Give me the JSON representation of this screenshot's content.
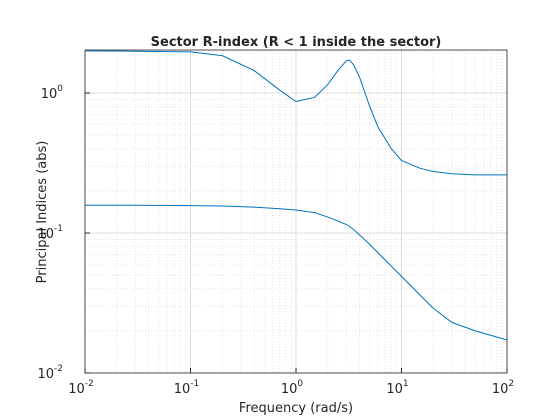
{
  "chart_data": {
    "type": "line",
    "title": "Sector R-index (R < 1 inside the sector)",
    "xlabel": "Frequency (rad/s)",
    "ylabel": "Principal Indices (abs)",
    "x": [
      0.01,
      0.03,
      0.1,
      0.2,
      0.4,
      0.7,
      1,
      1.5,
      2,
      2.5,
      3,
      3.2,
      3.5,
      4,
      5,
      6,
      8,
      10,
      15,
      20,
      30,
      50,
      100
    ],
    "series": [
      {
        "color": "#0072bd",
        "values": [
          2.0,
          1.99,
          1.97,
          1.85,
          1.45,
          1.05,
          0.87,
          0.93,
          1.15,
          1.45,
          1.7,
          1.72,
          1.6,
          1.3,
          0.8,
          0.57,
          0.4,
          0.33,
          0.29,
          0.275,
          0.265,
          0.26,
          0.26
        ]
      },
      {
        "color": "#0072bd",
        "values": [
          0.158,
          0.158,
          0.157,
          0.156,
          0.153,
          0.149,
          0.146,
          0.14,
          0.13,
          0.122,
          0.115,
          0.112,
          0.106,
          0.097,
          0.083,
          0.072,
          0.058,
          0.049,
          0.036,
          0.029,
          0.023,
          0.02,
          0.0172
        ]
      }
    ],
    "xscale": "log",
    "yscale": "log",
    "xlim": [
      0.01,
      100
    ],
    "ylim": [
      0.01,
      2.03
    ],
    "xticks": [
      {
        "value": 0.01,
        "label": "10",
        "exponent": "-2"
      },
      {
        "value": 0.1,
        "label": "10",
        "exponent": "-1"
      },
      {
        "value": 1,
        "label": "10",
        "exponent": "0"
      },
      {
        "value": 10,
        "label": "10",
        "exponent": "1"
      },
      {
        "value": 100,
        "label": "10",
        "exponent": "2"
      }
    ],
    "yticks": [
      {
        "value": 0.01,
        "label": "10",
        "exponent": "-2"
      },
      {
        "value": 0.1,
        "label": "10",
        "exponent": "-1"
      },
      {
        "value": 1,
        "label": "10",
        "exponent": "0"
      }
    ],
    "grid": true,
    "minor_grid": true
  }
}
